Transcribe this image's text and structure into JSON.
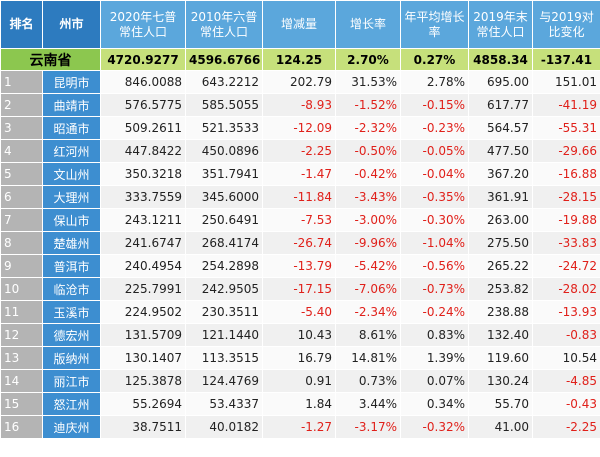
{
  "table": {
    "header": [
      "排名",
      "州市",
      "2020年七普常住人口",
      "2010年六普常住人口",
      "增减量",
      "增长率",
      "年平均增长率",
      "2019年末常住人口",
      "与2019对比变化"
    ],
    "province": [
      "云南省",
      "4720.9277",
      "4596.6766",
      "124.25",
      "2.70%",
      "0.27%",
      "4858.34",
      "-137.41"
    ],
    "rows": [
      [
        "1",
        "昆明市",
        "846.0088",
        "643.2212",
        "202.79",
        "31.53%",
        "2.78%",
        "695.00",
        "151.01"
      ],
      [
        "2",
        "曲靖市",
        "576.5775",
        "585.5055",
        "-8.93",
        "-1.52%",
        "-0.15%",
        "617.77",
        "-41.19"
      ],
      [
        "3",
        "昭通市",
        "509.2611",
        "521.3533",
        "-12.09",
        "-2.32%",
        "-0.23%",
        "564.57",
        "-55.31"
      ],
      [
        "4",
        "红河州",
        "447.8422",
        "450.0896",
        "-2.25",
        "-0.50%",
        "-0.05%",
        "477.50",
        "-29.66"
      ],
      [
        "5",
        "文山州",
        "350.3218",
        "351.7941",
        "-1.47",
        "-0.42%",
        "-0.04%",
        "367.20",
        "-16.88"
      ],
      [
        "6",
        "大理州",
        "333.7559",
        "345.6000",
        "-11.84",
        "-3.43%",
        "-0.35%",
        "361.91",
        "-28.15"
      ],
      [
        "7",
        "保山市",
        "243.1211",
        "250.6491",
        "-7.53",
        "-3.00%",
        "-0.30%",
        "263.00",
        "-19.88"
      ],
      [
        "8",
        "楚雄州",
        "241.6747",
        "268.4174",
        "-26.74",
        "-9.96%",
        "-1.04%",
        "275.50",
        "-33.83"
      ],
      [
        "9",
        "普洱市",
        "240.4954",
        "254.2898",
        "-13.79",
        "-5.42%",
        "-0.56%",
        "265.22",
        "-24.72"
      ],
      [
        "10",
        "临沧市",
        "225.7991",
        "242.9505",
        "-17.15",
        "-7.06%",
        "-0.73%",
        "253.82",
        "-28.02"
      ],
      [
        "11",
        "玉溪市",
        "224.9502",
        "230.3511",
        "-5.40",
        "-2.34%",
        "-0.24%",
        "238.88",
        "-13.93"
      ],
      [
        "12",
        "德宏州",
        "131.5709",
        "121.1440",
        "10.43",
        "8.61%",
        "0.83%",
        "132.40",
        "-0.83"
      ],
      [
        "13",
        "版纳州",
        "130.1407",
        "113.3515",
        "16.79",
        "14.81%",
        "1.39%",
        "119.60",
        "10.54"
      ],
      [
        "14",
        "丽江市",
        "125.3878",
        "124.4769",
        "0.91",
        "0.73%",
        "0.07%",
        "130.24",
        "-4.85"
      ],
      [
        "15",
        "怒江州",
        "55.2694",
        "53.4337",
        "1.84",
        "3.44%",
        "0.34%",
        "55.70",
        "-0.43"
      ],
      [
        "16",
        "迪庆州",
        "38.7511",
        "40.0182",
        "-1.27",
        "-3.17%",
        "-0.32%",
        "41.00",
        "-2.25"
      ]
    ]
  }
}
